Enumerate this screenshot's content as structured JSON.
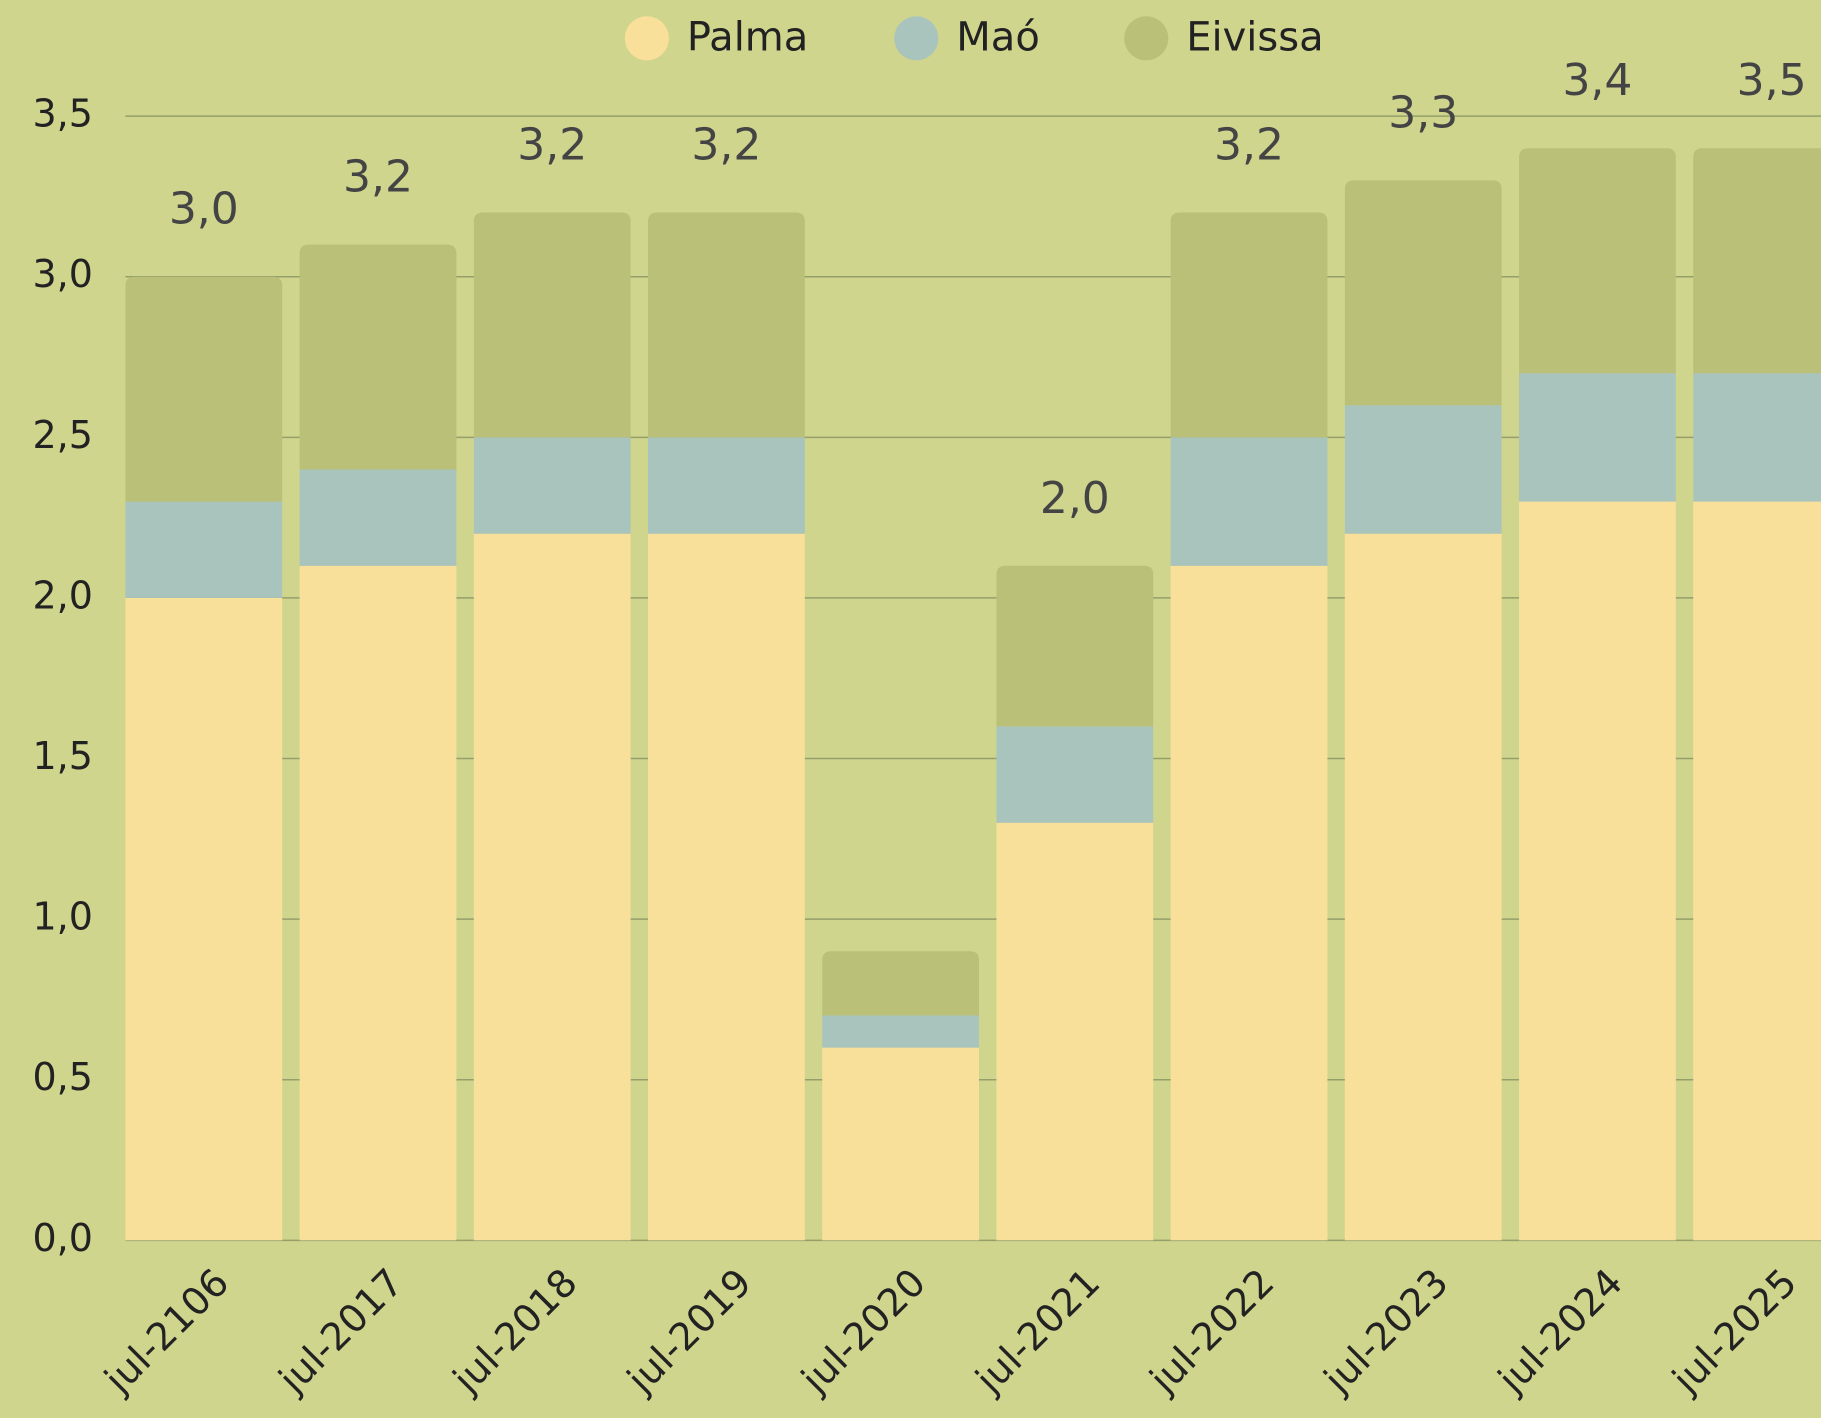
{
  "chart_data": {
    "type": "stacked_bar",
    "categories": [
      "jul-2106",
      "jul-2017",
      "jul-2018",
      "jul-2019",
      "jul-2020",
      "jul-2021",
      "jul-2022",
      "jul-2023",
      "jul-2024",
      "jul-2025"
    ],
    "series": [
      {
        "name": "Palma",
        "color": "#f8e09a",
        "values": [
          2.0,
          2.1,
          2.2,
          2.2,
          0.6,
          1.3,
          2.1,
          2.2,
          2.3,
          2.3
        ]
      },
      {
        "name": "Maó",
        "color": "#a9c3bd",
        "values": [
          0.3,
          0.3,
          0.3,
          0.3,
          0.1,
          0.3,
          0.4,
          0.4,
          0.4,
          0.4
        ]
      },
      {
        "name": "Eivissa",
        "color": "#bac077",
        "values": [
          0.7,
          0.7,
          0.7,
          0.7,
          0.2,
          0.5,
          0.7,
          0.7,
          0.7,
          0.7
        ]
      }
    ],
    "totals": [
      3.0,
      3.2,
      3.2,
      3.2,
      null,
      2.0,
      3.2,
      3.3,
      3.4,
      3.5
    ],
    "total_labels": [
      "3,0",
      "3,2",
      "3,2",
      "3,2",
      null,
      "2,0",
      "3,2",
      "3,3",
      "3,4",
      "3,5"
    ],
    "ylim": [
      0,
      3.5
    ],
    "yticks": [
      {
        "value": 0,
        "label": "0,0"
      },
      {
        "value": 0.5,
        "label": "0,5"
      },
      {
        "value": 1,
        "label": "1,0"
      },
      {
        "value": 1.5,
        "label": "1,5"
      },
      {
        "value": 2,
        "label": "2,0"
      },
      {
        "value": 2.5,
        "label": "2,5"
      },
      {
        "value": 3,
        "label": "3,0"
      },
      {
        "value": 3.5,
        "label": "3,5"
      }
    ],
    "grid": true,
    "legend": "top"
  }
}
